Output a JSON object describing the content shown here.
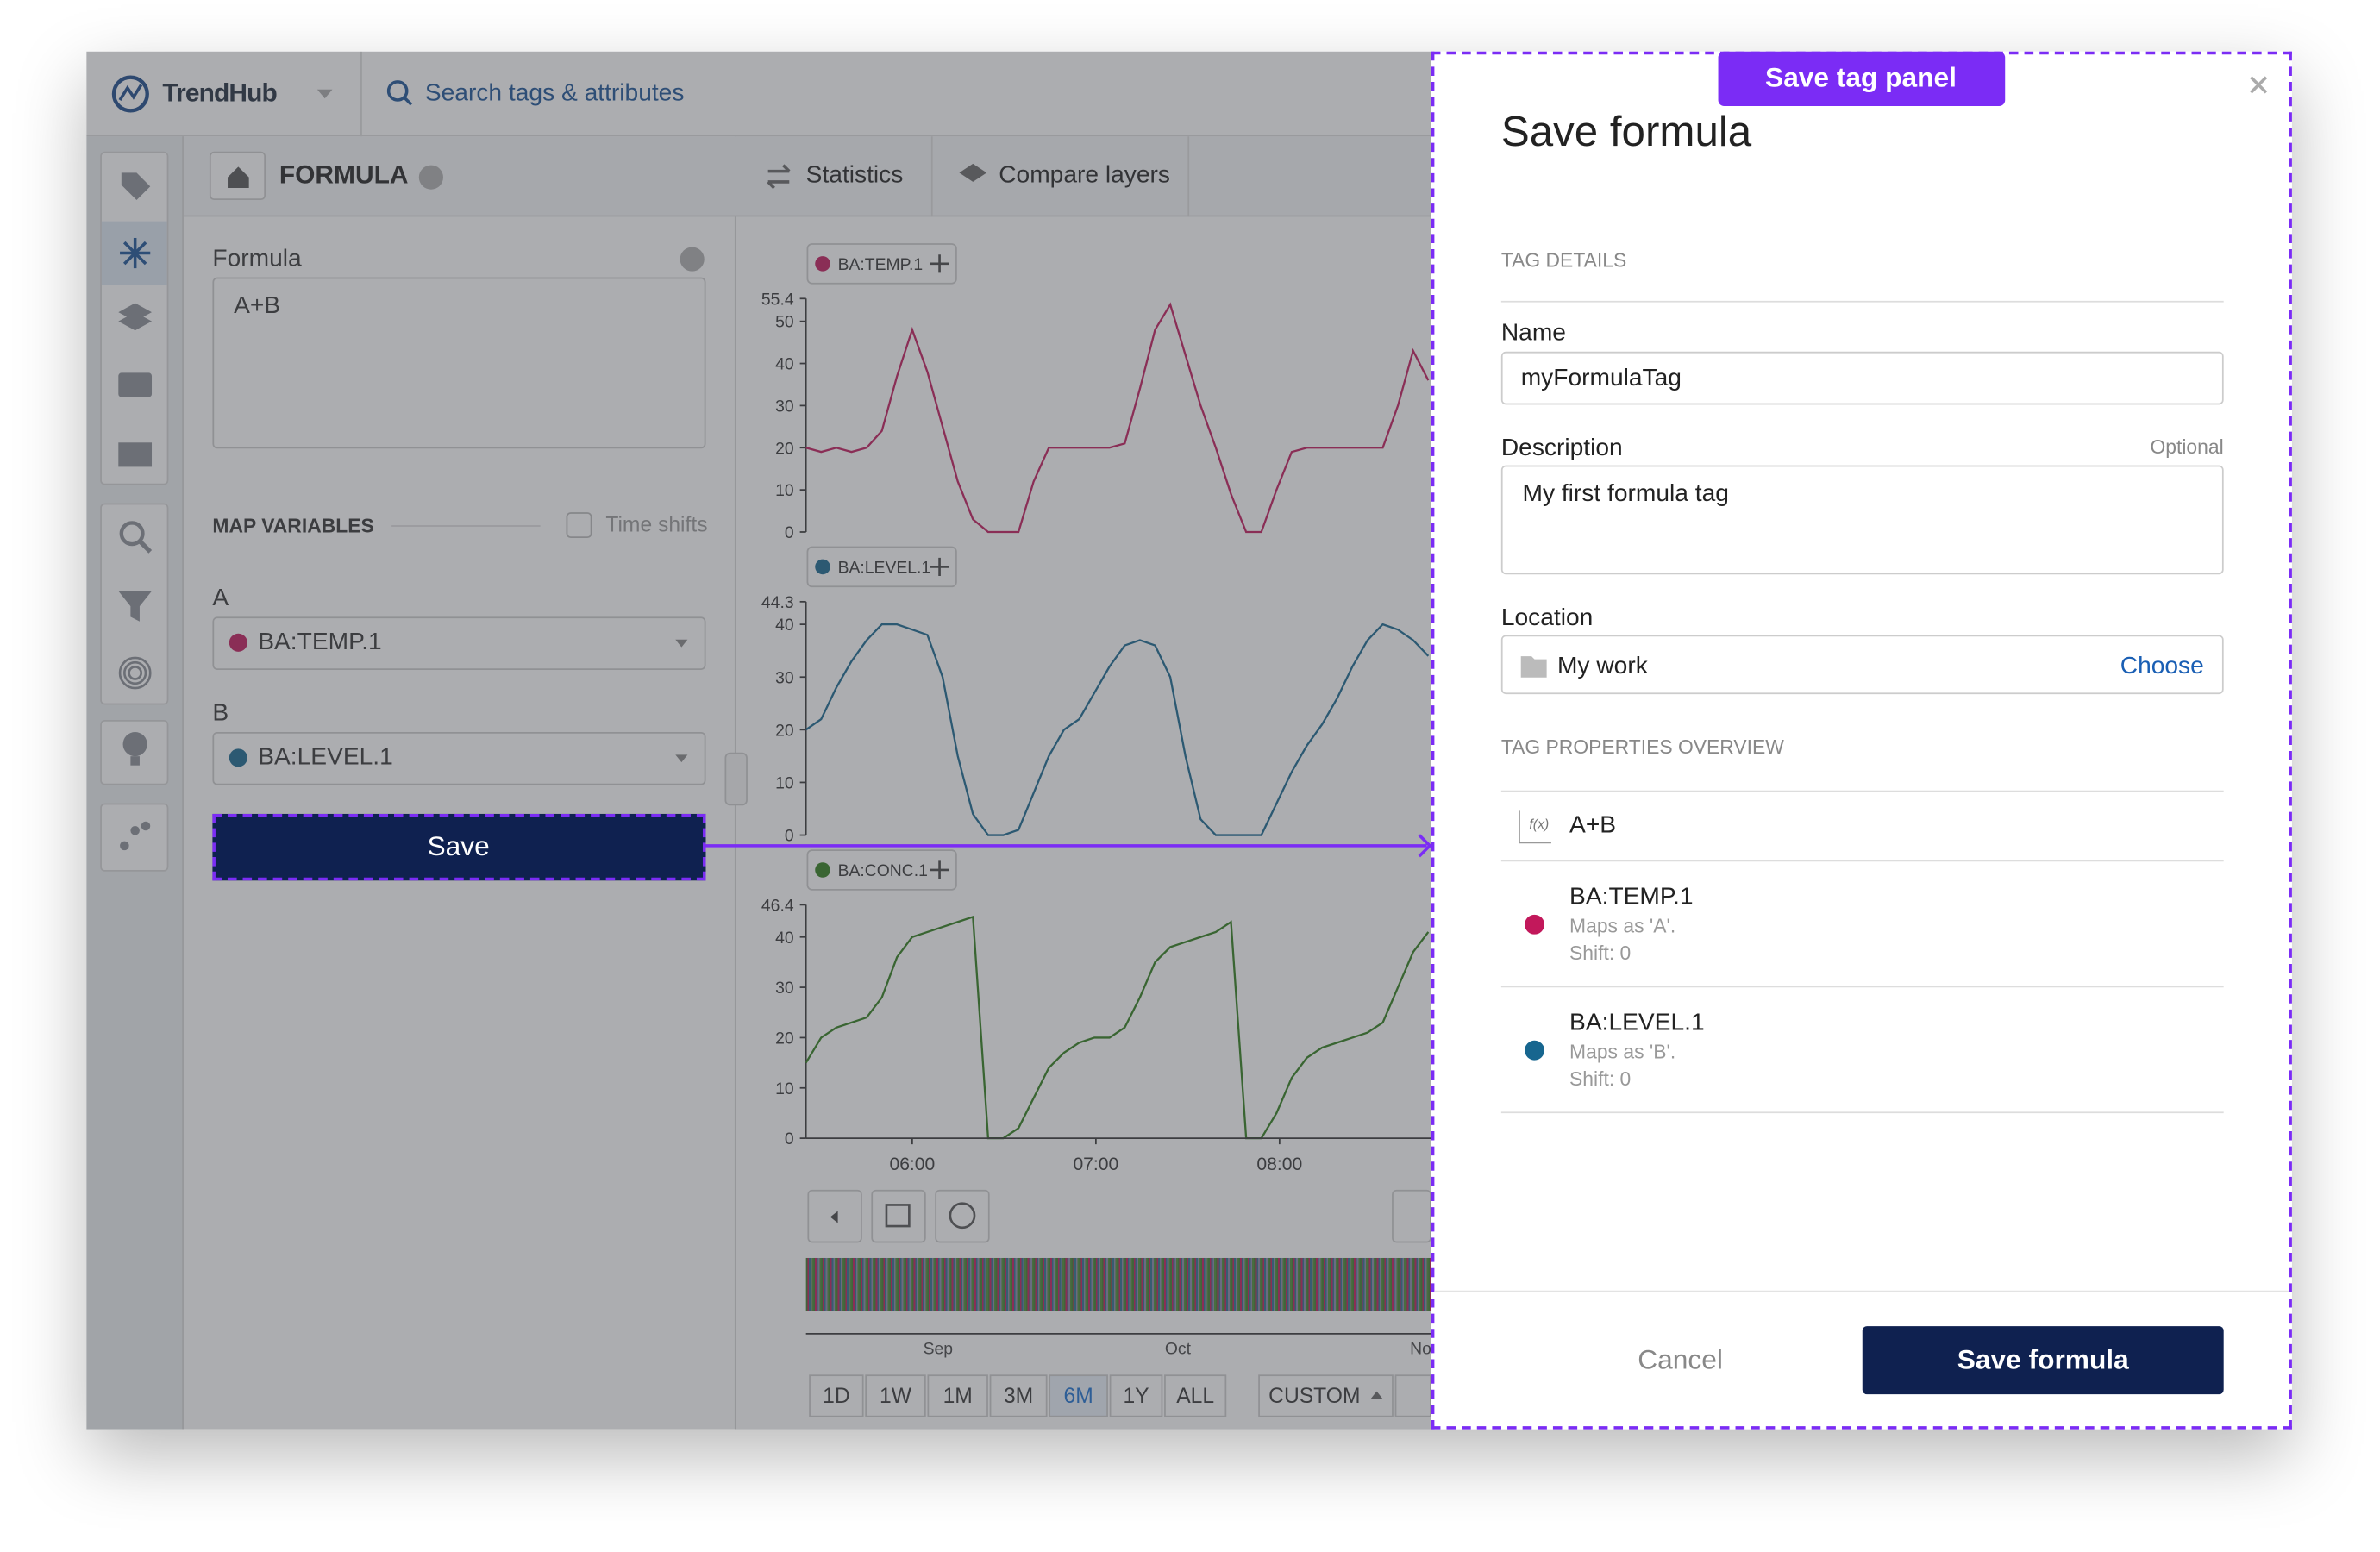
{
  "header": {
    "brand": "TrendHub",
    "search_placeholder": "Search tags & attributes"
  },
  "formula_panel": {
    "title": "FORMULA",
    "formula_label": "Formula",
    "formula": "A+B",
    "map_variables": "MAP VARIABLES",
    "time_shifts": "Time shifts",
    "variables": [
      {
        "name": "A",
        "tag": "BA:TEMP.1",
        "color": "#c2185b"
      },
      {
        "name": "B",
        "tag": "BA:LEVEL.1",
        "color": "#17668f"
      }
    ],
    "save_button": "Save"
  },
  "toolbar": {
    "tabs": [
      "Statistics",
      "Compare layers"
    ]
  },
  "chart_data": [
    {
      "type": "line",
      "series": [
        {
          "name": "BA:TEMP.1",
          "color": "#c2185b",
          "values": [
            20,
            19,
            20,
            19,
            20,
            24,
            37,
            48,
            38,
            25,
            12,
            3,
            0,
            0,
            0,
            12,
            20,
            20,
            20,
            20,
            20,
            21,
            34,
            48,
            54,
            42,
            30,
            20,
            9,
            0,
            0,
            10,
            19,
            20,
            20,
            20,
            20,
            20,
            20,
            30,
            43,
            36
          ]
        }
      ],
      "ylim": [
        0,
        55.4
      ],
      "yticks": [
        0,
        10,
        20,
        30,
        40,
        50,
        55.4
      ]
    },
    {
      "type": "line",
      "series": [
        {
          "name": "BA:LEVEL.1",
          "color": "#17668f",
          "values": [
            20,
            22,
            28,
            33,
            37,
            40,
            40,
            39,
            38,
            30,
            15,
            4,
            0,
            0,
            1,
            8,
            15,
            20,
            22,
            27,
            32,
            36,
            37,
            36,
            30,
            15,
            3,
            0,
            0,
            0,
            0,
            6,
            12,
            17,
            21,
            26,
            32,
            37,
            40,
            39,
            37,
            34
          ]
        }
      ],
      "ylim": [
        0,
        44.3
      ],
      "yticks": [
        0,
        10,
        20,
        30,
        40,
        44.3
      ]
    },
    {
      "type": "line",
      "series": [
        {
          "name": "BA:CONC.1",
          "color": "#2f7d1a",
          "values": [
            15,
            20,
            22,
            23,
            24,
            28,
            36,
            40,
            41,
            42,
            43,
            44,
            0,
            0,
            2,
            8,
            14,
            17,
            19,
            20,
            20,
            22,
            28,
            35,
            38,
            39,
            40,
            41,
            43,
            0,
            0,
            5,
            12,
            16,
            18,
            19,
            20,
            21,
            23,
            30,
            37,
            41
          ]
        }
      ],
      "ylim": [
        0,
        46.4
      ],
      "yticks": [
        0,
        10,
        20,
        30,
        40,
        46.4
      ],
      "xticks": [
        "06:00",
        "07:00",
        "08:00"
      ]
    }
  ],
  "time_navigator": {
    "labels": [
      "Sep",
      "Oct",
      "No"
    ],
    "ranges": [
      "1D",
      "1W",
      "1M",
      "3M",
      "6M",
      "1Y",
      "ALL"
    ],
    "active_range": 4,
    "custom": "CUSTOM"
  },
  "annotation": {
    "label": "Save tag panel",
    "color": "#7b2cf5"
  },
  "save_panel": {
    "title": "Save formula",
    "tag_details": "TAG DETAILS",
    "name_label": "Name",
    "name_value": "myFormulaTag",
    "description_label": "Description",
    "optional": "Optional",
    "description_value": "My first formula tag",
    "location_label": "Location",
    "location_value": "My work",
    "choose": "Choose",
    "overview_title": "TAG PROPERTIES OVERVIEW",
    "formula_icon": "f(x)",
    "formula": "A+B",
    "properties": [
      {
        "tag": "BA:TEMP.1",
        "color": "#c2185b",
        "maps": "Maps as 'A'.",
        "shift": "Shift: 0"
      },
      {
        "tag": "BA:LEVEL.1",
        "color": "#17668f",
        "maps": "Maps as 'B'.",
        "shift": "Shift: 0"
      }
    ],
    "cancel": "Cancel",
    "submit": "Save formula"
  }
}
